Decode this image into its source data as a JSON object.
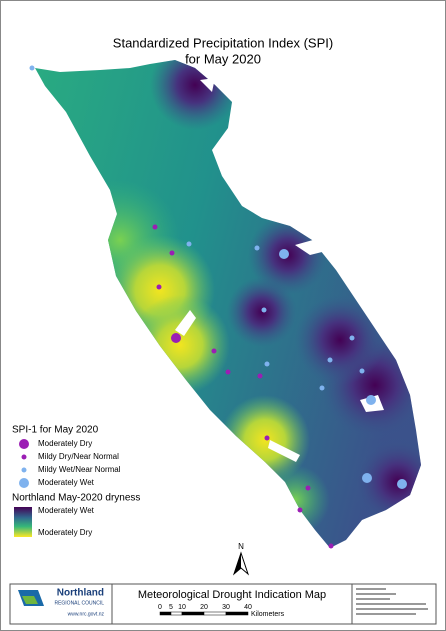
{
  "title": [
    "Standardized Precipitation Index (SPI)",
    "for May 2020"
  ],
  "legend": {
    "title": "SPI-1 for May 2020",
    "items": [
      "Moderately Dry",
      "Mildy Dry/Near Normal",
      "Mildy Wet/Near Normal",
      "Moderately Wet"
    ]
  },
  "dryness": {
    "title": "Northland May-2020 dryness",
    "high": "Moderately Wet",
    "low": "Moderately Dry"
  },
  "north": "N",
  "footer": {
    "org": "Northland",
    "org_sub": "REGIONAL COUNCIL",
    "url": "www.nrc.govt.nz",
    "title": "Meteorological Drought Indication Map",
    "scale": {
      "ticks": [
        "0",
        "5",
        "10",
        "20",
        "30",
        "40"
      ],
      "unit": "Kilometers"
    }
  }
}
